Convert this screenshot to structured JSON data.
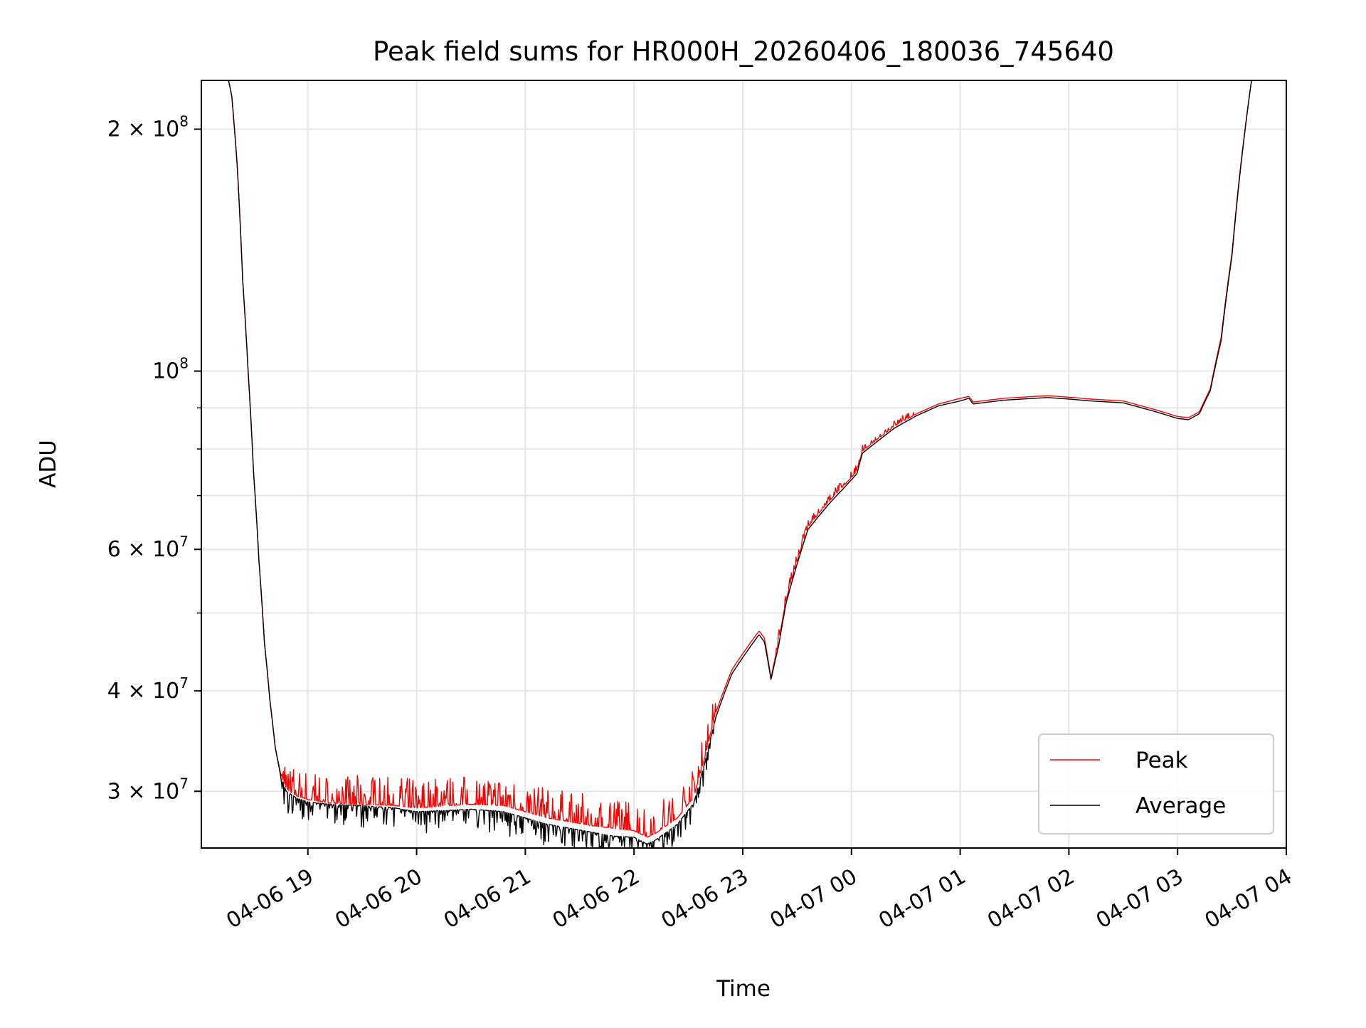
{
  "chart_data": {
    "type": "line",
    "title": "Peak field sums for HR000H_20260406_180036_745640",
    "xlabel": "Time",
    "ylabel": "ADU",
    "yscale": "log",
    "grid": true,
    "legend_position": "lower-right",
    "xlim_hours": [
      18.02,
      28.0
    ],
    "ylim": [
      25500000,
      230000000
    ],
    "x_ticks": [
      {
        "hour": 19,
        "label": "04-06 19"
      },
      {
        "hour": 20,
        "label": "04-06 20"
      },
      {
        "hour": 21,
        "label": "04-06 21"
      },
      {
        "hour": 22,
        "label": "04-06 22"
      },
      {
        "hour": 23,
        "label": "04-06 23"
      },
      {
        "hour": 24,
        "label": "04-07 00"
      },
      {
        "hour": 25,
        "label": "04-07 01"
      },
      {
        "hour": 26,
        "label": "04-07 02"
      },
      {
        "hour": 27,
        "label": "04-07 03"
      },
      {
        "hour": 28,
        "label": "04-07 04"
      }
    ],
    "y_major_ticks": [
      {
        "value": 30000000,
        "mant": "3",
        "exp": "7"
      },
      {
        "value": 40000000,
        "mant": "4",
        "exp": "7"
      },
      {
        "value": 60000000,
        "mant": "6",
        "exp": "7"
      },
      {
        "value": 100000000,
        "mant": "",
        "exp": "8"
      },
      {
        "value": 200000000,
        "mant": "2",
        "exp": "8"
      }
    ],
    "y_minor_ticks": [
      50000000,
      70000000,
      80000000,
      90000000
    ],
    "series": [
      {
        "name": "Peak",
        "color": "#ff0000",
        "noise_up": 2500000,
        "points": [
          [
            18.02,
            230000000
          ],
          [
            18.27,
            230000000
          ],
          [
            18.3,
            220000000
          ],
          [
            18.35,
            180000000
          ],
          [
            18.4,
            130000000
          ],
          [
            18.45,
            100000000
          ],
          [
            18.5,
            75000000
          ],
          [
            18.55,
            58000000
          ],
          [
            18.6,
            46000000
          ],
          [
            18.65,
            39000000
          ],
          [
            18.7,
            34000000
          ],
          [
            18.75,
            31500000
          ],
          [
            18.8,
            30200000
          ],
          [
            18.9,
            29600000
          ],
          [
            19.0,
            29300000
          ],
          [
            19.2,
            29000000
          ],
          [
            19.5,
            28900000
          ],
          [
            19.8,
            28800000
          ],
          [
            20.0,
            28600000
          ],
          [
            20.3,
            28800000
          ],
          [
            20.5,
            28900000
          ],
          [
            20.8,
            28800000
          ],
          [
            21.0,
            28300000
          ],
          [
            21.2,
            27800000
          ],
          [
            21.4,
            27500000
          ],
          [
            21.6,
            27200000
          ],
          [
            21.8,
            27000000
          ],
          [
            22.0,
            26800000
          ],
          [
            22.12,
            26300000
          ],
          [
            22.2,
            26600000
          ],
          [
            22.4,
            27800000
          ],
          [
            22.55,
            29500000
          ],
          [
            22.65,
            33000000
          ],
          [
            22.75,
            37500000
          ],
          [
            22.9,
            42500000
          ],
          [
            23.0,
            44500000
          ],
          [
            23.15,
            47500000
          ],
          [
            23.2,
            46500000
          ],
          [
            23.26,
            41500000
          ],
          [
            23.33,
            46000000
          ],
          [
            23.4,
            52000000
          ],
          [
            23.5,
            58000000
          ],
          [
            23.6,
            64000000
          ],
          [
            23.8,
            69000000
          ],
          [
            23.95,
            72500000
          ],
          [
            24.05,
            75000000
          ],
          [
            24.1,
            79500000
          ],
          [
            24.2,
            81500000
          ],
          [
            24.4,
            85500000
          ],
          [
            24.6,
            88500000
          ],
          [
            24.8,
            91000000
          ],
          [
            25.0,
            92500000
          ],
          [
            25.08,
            93000000
          ],
          [
            25.12,
            91500000
          ],
          [
            25.2,
            91800000
          ],
          [
            25.4,
            92500000
          ],
          [
            25.8,
            93200000
          ],
          [
            26.0,
            92800000
          ],
          [
            26.2,
            92300000
          ],
          [
            26.5,
            91800000
          ],
          [
            26.8,
            89500000
          ],
          [
            27.0,
            87800000
          ],
          [
            27.1,
            87500000
          ],
          [
            27.2,
            89000000
          ],
          [
            27.3,
            95000000
          ],
          [
            27.4,
            110000000
          ],
          [
            27.5,
            140000000
          ],
          [
            27.6,
            190000000
          ],
          [
            27.68,
            230000000
          ],
          [
            28.0,
            230000000
          ]
        ]
      },
      {
        "name": "Average",
        "color": "#000000",
        "noise_down": 1800000,
        "points": [
          [
            18.02,
            230000000
          ],
          [
            18.27,
            230000000
          ],
          [
            18.3,
            220000000
          ],
          [
            18.35,
            180000000
          ],
          [
            18.4,
            130000000
          ],
          [
            18.45,
            100000000
          ],
          [
            18.5,
            75000000
          ],
          [
            18.55,
            58000000
          ],
          [
            18.6,
            46000000
          ],
          [
            18.65,
            39000000
          ],
          [
            18.7,
            34000000
          ],
          [
            18.75,
            31300000
          ],
          [
            18.8,
            30000000
          ],
          [
            18.9,
            29400000
          ],
          [
            19.0,
            29100000
          ],
          [
            19.2,
            28900000
          ],
          [
            19.5,
            28800000
          ],
          [
            19.8,
            28600000
          ],
          [
            20.0,
            28300000
          ],
          [
            20.3,
            28400000
          ],
          [
            20.5,
            28500000
          ],
          [
            20.8,
            28300000
          ],
          [
            21.0,
            27800000
          ],
          [
            21.2,
            27300000
          ],
          [
            21.4,
            27000000
          ],
          [
            21.6,
            26700000
          ],
          [
            21.8,
            26400000
          ],
          [
            22.0,
            26300000
          ],
          [
            22.12,
            25800000
          ],
          [
            22.2,
            26100000
          ],
          [
            22.4,
            27300000
          ],
          [
            22.55,
            29000000
          ],
          [
            22.65,
            32500000
          ],
          [
            22.75,
            37000000
          ],
          [
            22.9,
            42000000
          ],
          [
            23.0,
            44000000
          ],
          [
            23.15,
            47000000
          ],
          [
            23.2,
            46000000
          ],
          [
            23.26,
            41300000
          ],
          [
            23.33,
            45500000
          ],
          [
            23.4,
            51500000
          ],
          [
            23.5,
            57500000
          ],
          [
            23.6,
            63500000
          ],
          [
            23.8,
            68500000
          ],
          [
            23.95,
            72000000
          ],
          [
            24.05,
            74500000
          ],
          [
            24.1,
            79000000
          ],
          [
            24.2,
            81000000
          ],
          [
            24.4,
            85000000
          ],
          [
            24.6,
            88000000
          ],
          [
            24.8,
            90500000
          ],
          [
            25.0,
            91800000
          ],
          [
            25.08,
            92500000
          ],
          [
            25.12,
            91000000
          ],
          [
            25.2,
            91300000
          ],
          [
            25.4,
            92000000
          ],
          [
            25.8,
            92700000
          ],
          [
            26.0,
            92300000
          ],
          [
            26.2,
            91800000
          ],
          [
            26.5,
            91300000
          ],
          [
            26.8,
            89000000
          ],
          [
            27.0,
            87300000
          ],
          [
            27.1,
            87000000
          ],
          [
            27.2,
            88500000
          ],
          [
            27.3,
            94500000
          ],
          [
            27.4,
            109000000
          ],
          [
            27.5,
            139000000
          ],
          [
            27.6,
            189000000
          ],
          [
            27.68,
            230000000
          ],
          [
            28.0,
            230000000
          ]
        ]
      }
    ]
  }
}
